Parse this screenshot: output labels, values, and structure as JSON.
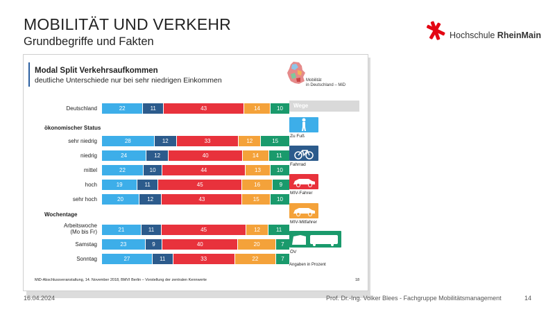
{
  "slide": {
    "title": "MOBILITÄT UND VERKEHR",
    "subtitle": "Grundbegriffe und Fakten",
    "logo_prefix": "Hochschule ",
    "logo_bold": "RheinMain",
    "footer_date": "16.04.2024",
    "footer_author": "Prof. Dr.-Ing. Volker Blees - Fachgruppe Mobilitätsmanagement",
    "footer_page": "14"
  },
  "embedded": {
    "mid_label_line1": "Mobilität",
    "mid_label_line2": "in Deutschland – MiD",
    "legend_header": "Wege",
    "unit_note": "Angaben in Prozent",
    "source_note": "MiD-Abschlussveranstaltung, 14. November 2018, BMVI Berlin – Vorstellung der zentralen Kennwerte",
    "page_num": "18",
    "section_1": "ökonomischer Status",
    "section_2": "Wochentage"
  },
  "colors": {
    "Zu Fuß": "#3daee9",
    "Fahrrad": "#2c5b8c",
    "MIV-Fahrer": "#e8323c",
    "MIV-Mitfahrer": "#f4a23a",
    "ÖV": "#1a9a6c",
    "hsrm_red": "#e30613"
  },
  "chart_data": {
    "type": "bar",
    "stacked": true,
    "orientation": "horizontal",
    "title": "Modal Split Verkehrsaufkommen",
    "subtitle": "deutliche Unterschiede nur bei sehr niedrigen Einkommen",
    "categories": [
      "Deutschland",
      "sehr niedrig",
      "niedrig",
      "mittel",
      "hoch",
      "sehr hoch",
      "Arbeitswoche (Mo bis Fr)",
      "Samstag",
      "Sonntag"
    ],
    "category_display": [
      "Deutschland",
      "sehr niedrig",
      "niedrig",
      "mittel",
      "hoch",
      "sehr hoch",
      "Arbeitswoche\n(Mo bis Fr)",
      "Samstag",
      "Sonntag"
    ],
    "series": [
      {
        "name": "Zu Fuß",
        "values": [
          22,
          28,
          24,
          22,
          19,
          20,
          21,
          23,
          27
        ]
      },
      {
        "name": "Fahrrad",
        "values": [
          11,
          12,
          12,
          10,
          11,
          12,
          11,
          9,
          11
        ]
      },
      {
        "name": "MIV-Fahrer",
        "values": [
          43,
          33,
          40,
          44,
          45,
          43,
          45,
          40,
          33
        ]
      },
      {
        "name": "MIV-Mitfahrer",
        "values": [
          14,
          12,
          14,
          13,
          16,
          15,
          12,
          20,
          22
        ]
      },
      {
        "name": "ÖV",
        "values": [
          10,
          15,
          11,
          10,
          9,
          10,
          11,
          7,
          7
        ]
      }
    ],
    "xlim": [
      0,
      100
    ],
    "legend_position": "right"
  }
}
